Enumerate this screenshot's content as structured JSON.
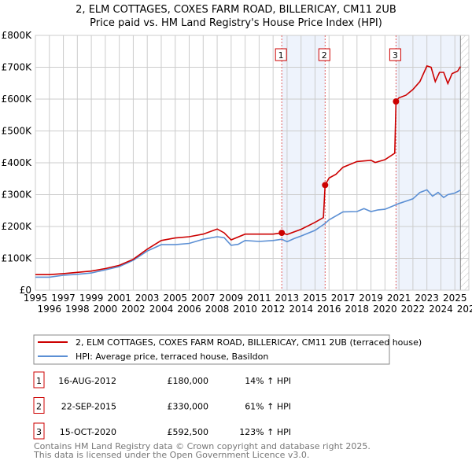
{
  "chart_data": {
    "type": "line",
    "title": "2, ELM COTTAGES, COXES FARM ROAD, BILLERICAY, CM11 2UB",
    "subtitle": "Price paid vs. HM Land Registry's House Price Index (HPI)",
    "xlim": [
      1995,
      2026
    ],
    "ylim": [
      0,
      800000
    ],
    "y_ticks": [
      {
        "v": 0,
        "label": "£0"
      },
      {
        "v": 100000,
        "label": "£100K"
      },
      {
        "v": 200000,
        "label": "£200K"
      },
      {
        "v": 300000,
        "label": "£300K"
      },
      {
        "v": 400000,
        "label": "£400K"
      },
      {
        "v": 500000,
        "label": "£500K"
      },
      {
        "v": 600000,
        "label": "£600K"
      },
      {
        "v": 700000,
        "label": "£700K"
      },
      {
        "v": 800000,
        "label": "£800K"
      }
    ],
    "x_ticks": [
      "1995",
      "1996",
      "1997",
      "1998",
      "1999",
      "2000",
      "2001",
      "2002",
      "2003",
      "2004",
      "2005",
      "2006",
      "2007",
      "2008",
      "2009",
      "2010",
      "2011",
      "2012",
      "2013",
      "2014",
      "2015",
      "2016",
      "2017",
      "2018",
      "2019",
      "2020",
      "2021",
      "2022",
      "2023",
      "2024",
      "2025",
      "2026"
    ],
    "grid": true,
    "series": [
      {
        "name": "2, ELM COTTAGES, COXES FARM ROAD, BILLERICAY, CM11 2UB (terraced house)",
        "color": "#cc0000",
        "x": [
          1995,
          1996,
          1997,
          1998,
          1999,
          2000,
          2001,
          2002,
          2003,
          2004,
          2005,
          2006,
          2007,
          2008,
          2008.5,
          2009,
          2010,
          2011,
          2012,
          2012.62,
          2013,
          2014,
          2015,
          2015.6,
          2015.72,
          2016,
          2016.5,
          2017,
          2018,
          2019,
          2019.3,
          2020,
          2020.7,
          2020.79,
          2021,
          2021.5,
          2022,
          2022.5,
          2023,
          2023.3,
          2023.6,
          2023.9,
          2024.2,
          2024.5,
          2024.8,
          2025.2,
          2025.4
        ],
        "y": [
          49000,
          49000,
          52000,
          56000,
          60000,
          68000,
          78000,
          97000,
          129000,
          156000,
          164000,
          168000,
          176000,
          192000,
          180000,
          158000,
          176000,
          176000,
          176000,
          180000,
          175000,
          191000,
          213000,
          228000,
          330000,
          352000,
          364000,
          386000,
          404000,
          408000,
          401000,
          410000,
          430000,
          592500,
          604000,
          612000,
          630000,
          655000,
          704000,
          700000,
          655000,
          684000,
          684000,
          649000,
          680000,
          688000,
          702000
        ]
      },
      {
        "name": "HPI: Average price, terraced house, Basildon",
        "color": "#5b8fd4",
        "x": [
          1995,
          1996,
          1997,
          1998,
          1999,
          2000,
          2001,
          2002,
          2003,
          2004,
          2005,
          2006,
          2007,
          2008,
          2008.5,
          2009,
          2009.5,
          2010,
          2011,
          2012,
          2012.62,
          2013,
          2013.5,
          2014,
          2015,
          2015.7,
          2016,
          2017,
          2018,
          2018.5,
          2019,
          2019.5,
          2020,
          2021,
          2022,
          2022.5,
          2023,
          2023.4,
          2023.8,
          2024.2,
          2024.5,
          2025,
          2025.4
        ],
        "y": [
          41000,
          41000,
          47000,
          50000,
          54000,
          64000,
          74000,
          94000,
          123000,
          143000,
          143000,
          147000,
          160000,
          168000,
          165000,
          141000,
          144000,
          156000,
          153000,
          156000,
          160000,
          152000,
          162000,
          170000,
          188000,
          209000,
          221000,
          246000,
          247000,
          256000,
          247000,
          252000,
          254000,
          272000,
          287000,
          307000,
          315000,
          295000,
          307000,
          291000,
          300000,
          305000,
          314000
        ]
      }
    ],
    "sales": [
      {
        "n": "1",
        "x": 2012.62,
        "date": "16-AUG-2012",
        "price": "£180,000",
        "value": 180000,
        "hpi": "14% ↑ HPI"
      },
      {
        "n": "2",
        "x": 2015.72,
        "date": "22-SEP-2015",
        "price": "£330,000",
        "value": 330000,
        "hpi": "61% ↑ HPI"
      },
      {
        "n": "3",
        "x": 2020.79,
        "date": "15-OCT-2020",
        "price": "£592,500",
        "value": 592500,
        "hpi": "123% ↑ HPI"
      }
    ],
    "data_end": 2025.4
  },
  "footer": [
    "Contains HM Land Registry data © Crown copyright and database right 2025.",
    "This data is licensed under the Open Government Licence v3.0."
  ]
}
